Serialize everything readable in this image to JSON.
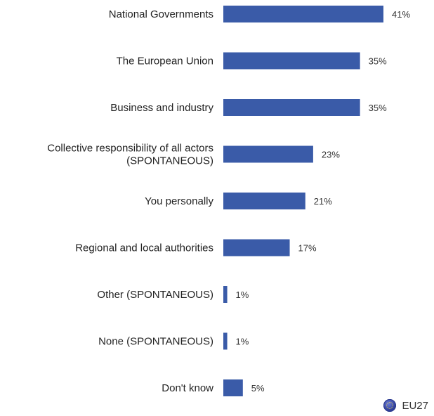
{
  "chart_data": {
    "type": "bar",
    "orientation": "horizontal",
    "categories": [
      [
        "National Governments"
      ],
      [
        "The European Union"
      ],
      [
        "Business and industry"
      ],
      [
        "Collective responsibility of all actors",
        "(SPONTANEOUS)"
      ],
      [
        "You personally"
      ],
      [
        "Regional and local authorities"
      ],
      [
        "Other (SPONTANEOUS)"
      ],
      [
        "None (SPONTANEOUS)"
      ],
      [
        "Don't know"
      ]
    ],
    "values": [
      41,
      35,
      35,
      23,
      21,
      17,
      1,
      1,
      5
    ],
    "value_labels": [
      "41%",
      "35%",
      "35%",
      "23%",
      "21%",
      "17%",
      "1%",
      "1%",
      "5%"
    ],
    "unit": "%",
    "xlim": [
      0,
      41
    ],
    "grid": false,
    "legend_position": "bottom-right",
    "series": [
      {
        "name": "EU27",
        "color": "#3a5ba8"
      }
    ]
  },
  "legend": {
    "label": "EU27",
    "icon": "eu-flag-globe-icon"
  }
}
